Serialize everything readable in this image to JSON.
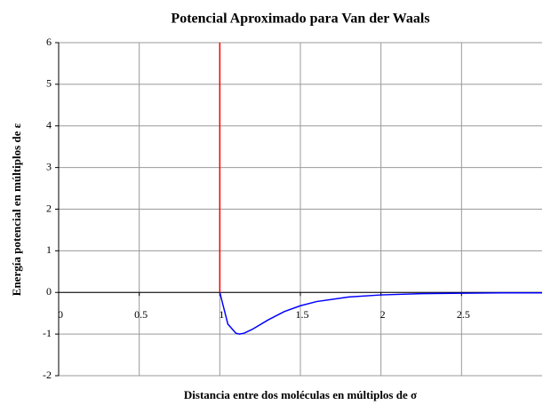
{
  "chart_data": {
    "type": "line",
    "title": "Potencial Aproximado para Van der Waals",
    "x_label": "Distancia entre dos moléculas en múltiplos de σ",
    "y_label": "Energía potencial en múltiplos de ε",
    "xlim": [
      0,
      3
    ],
    "ylim": [
      -2,
      6
    ],
    "xticks": [
      0,
      0.5,
      1,
      1.5,
      2,
      2.5
    ],
    "yticks": [
      -2,
      -1,
      0,
      1,
      2,
      3,
      4,
      5,
      6
    ],
    "grid": true,
    "series": [
      {
        "color": "#ff0000",
        "x": [
          1,
          1
        ],
        "values": [
          0,
          6
        ]
      },
      {
        "color": "#0000ff",
        "x": [
          1,
          1.05,
          1.1,
          1.122,
          1.15,
          1.2,
          1.3,
          1.4,
          1.5,
          1.6,
          1.8,
          2,
          2.25,
          2.5,
          2.75,
          3
        ],
        "values": [
          0,
          -0.76,
          -0.98,
          -1,
          -0.98,
          -0.89,
          -0.66,
          -0.46,
          -0.32,
          -0.22,
          -0.11,
          -0.06,
          -0.03,
          -0.02,
          -0.01,
          -0.01
        ]
      }
    ]
  }
}
